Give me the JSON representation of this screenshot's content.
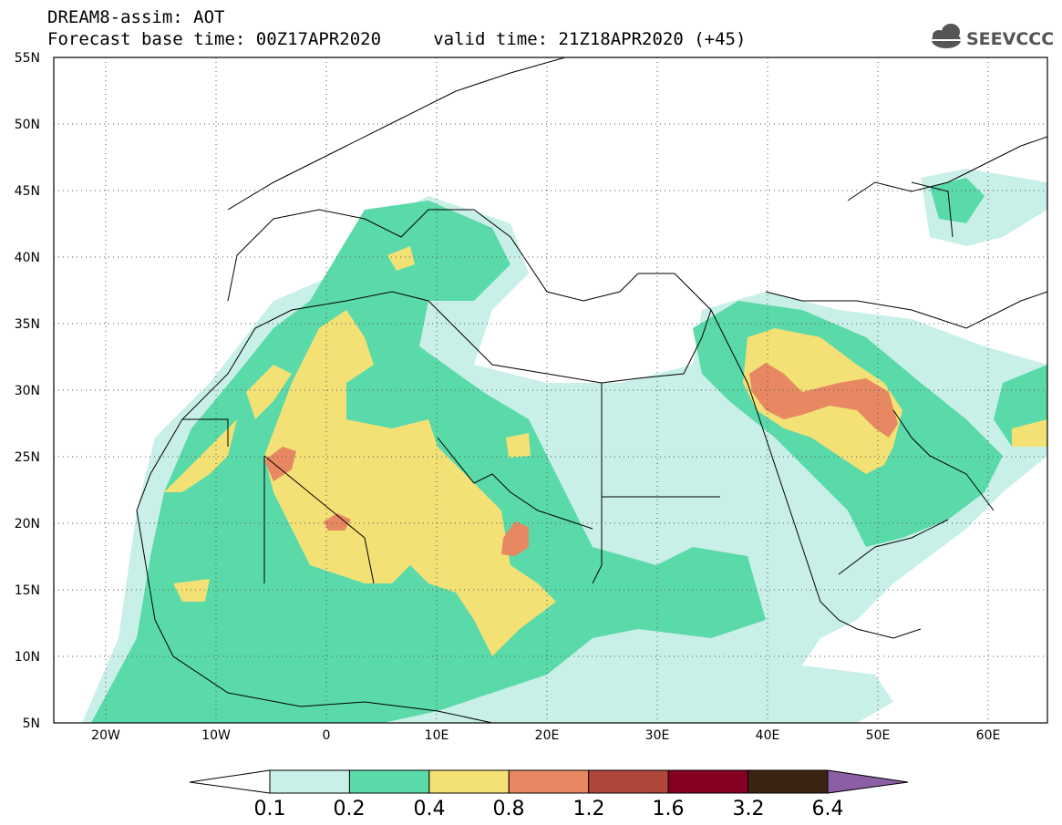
{
  "header": {
    "line1": "DREAM8-assim: AOT",
    "line2": "Forecast base time: 00Z17APR2020     valid time: 21Z18APR2020 (+45)"
  },
  "logo": {
    "text": "SEEVCCC",
    "icon": "cloud-logo-icon"
  },
  "map": {
    "lat_labels": [
      "55N",
      "50N",
      "45N",
      "40N",
      "35N",
      "30N",
      "25N",
      "20N",
      "15N",
      "10N",
      "5N"
    ],
    "lon_labels": [
      "20W",
      "10W",
      "0",
      "10E",
      "20E",
      "30E",
      "40E",
      "50E",
      "60E"
    ],
    "lat_range": [
      5,
      55
    ],
    "lon_range": [
      -25,
      65
    ],
    "grid": "dotted",
    "colors": {
      "level_0_1": "#c8f0e8",
      "level_0_2": "#5ad9a9",
      "level_0_4": "#f3e176",
      "level_0_8": "#e88862",
      "level_1_2": "#b0473a",
      "level_1_6": "#850021",
      "level_3_2": "#3c2412",
      "level_6_4": "#8a5fa3"
    }
  },
  "legend": {
    "labels": [
      "0.1",
      "0.2",
      "0.4",
      "0.8",
      "1.2",
      "1.6",
      "3.2",
      "6.4"
    ],
    "colors": [
      "#c8f0e8",
      "#5ad9a9",
      "#f3e176",
      "#e88862",
      "#b0473a",
      "#850021",
      "#3c2412"
    ],
    "min_arrow_color": "#ffffff",
    "max_arrow_color": "#8a5fa3"
  }
}
